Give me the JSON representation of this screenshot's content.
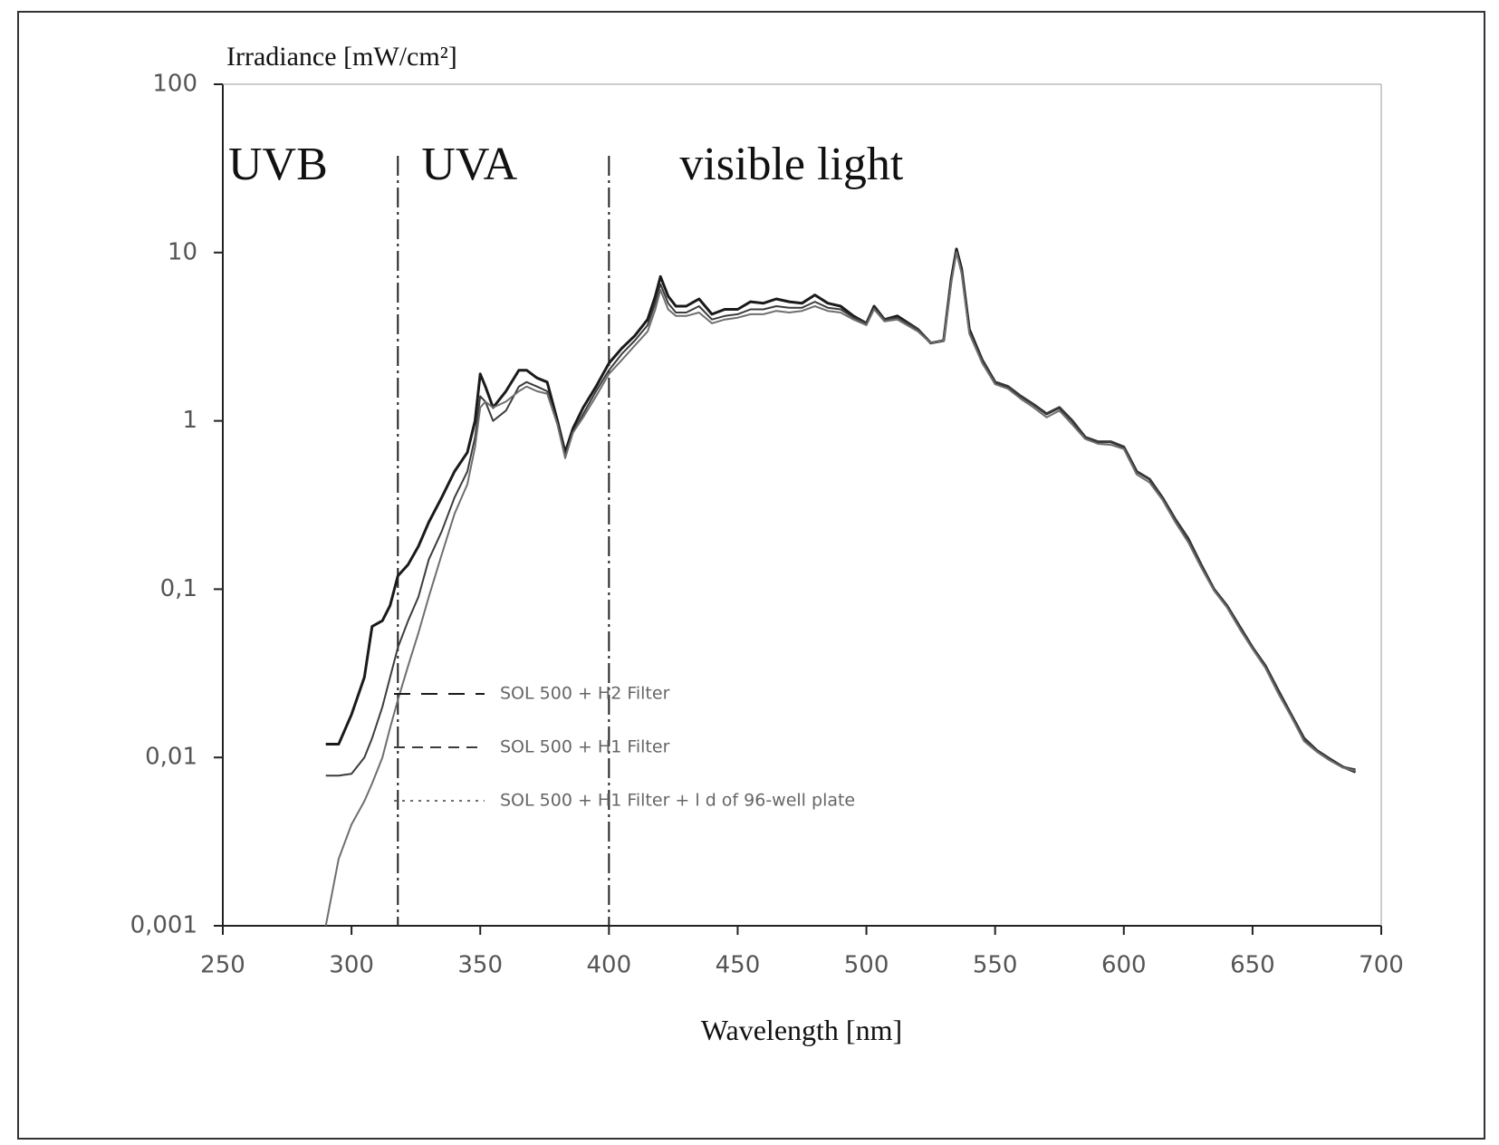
{
  "chart_data": {
    "type": "line",
    "y_label": "Irradiance [mW/cm²]",
    "x_label": "Wavelength [nm]",
    "log_y": true,
    "xlim": [
      250,
      700
    ],
    "xticks": [
      250,
      300,
      350,
      400,
      450,
      500,
      550,
      600,
      650,
      700
    ],
    "ylim": [
      0.001,
      100
    ],
    "yticks": [
      {
        "value": 0.001,
        "label": "0,001"
      },
      {
        "value": 0.01,
        "label": "0,01"
      },
      {
        "value": 0.1,
        "label": "0,1"
      },
      1,
      10,
      100
    ],
    "regions": [
      "UVB",
      "UVA",
      "visible light"
    ],
    "region_boundaries": [
      318,
      400
    ],
    "x": [
      290,
      295,
      300,
      305,
      308,
      312,
      315,
      318,
      322,
      326,
      330,
      335,
      340,
      345,
      348,
      350,
      352,
      355,
      360,
      365,
      368,
      372,
      376,
      380,
      383,
      386,
      390,
      395,
      400,
      405,
      410,
      415,
      418,
      420,
      423,
      426,
      430,
      435,
      440,
      445,
      450,
      455,
      460,
      465,
      470,
      475,
      480,
      485,
      490,
      495,
      500,
      503,
      507,
      512,
      520,
      525,
      530,
      533,
      535,
      537,
      540,
      545,
      550,
      555,
      560,
      565,
      570,
      575,
      580,
      585,
      590,
      595,
      600,
      605,
      610,
      615,
      620,
      625,
      630,
      635,
      640,
      645,
      650,
      655,
      660,
      665,
      670,
      675,
      680,
      685,
      690
    ],
    "series": [
      {
        "name": "SOL 500 + H2 Filter",
        "color": "#1a1a1a",
        "values": [
          0.012,
          0.012,
          0.018,
          0.03,
          0.06,
          0.065,
          0.08,
          0.12,
          0.14,
          0.18,
          0.25,
          0.35,
          0.5,
          0.65,
          1.0,
          1.9,
          1.6,
          1.2,
          1.5,
          2.0,
          2.0,
          1.8,
          1.7,
          1.0,
          0.65,
          0.9,
          1.2,
          1.6,
          2.2,
          2.7,
          3.2,
          4.0,
          5.5,
          7.2,
          5.5,
          4.8,
          4.8,
          5.3,
          4.3,
          4.6,
          4.6,
          5.1,
          5.0,
          5.3,
          5.1,
          5.0,
          5.6,
          5.0,
          4.8,
          4.2,
          3.8,
          4.8,
          4.0,
          4.2,
          3.5,
          2.9,
          3.0,
          7.0,
          10.5,
          8.0,
          3.5,
          2.3,
          1.7,
          1.6,
          1.4,
          1.25,
          1.1,
          1.2,
          1.0,
          0.8,
          0.75,
          0.75,
          0.7,
          0.5,
          0.45,
          0.35,
          0.26,
          0.2,
          0.14,
          0.1,
          0.08,
          0.06,
          0.045,
          0.035,
          0.025,
          0.018,
          0.013,
          0.011,
          0.0098,
          0.0088,
          0.0082
        ]
      },
      {
        "name": "SOL 500 + H1 Filter",
        "color": "#3c3c3c",
        "values": [
          0.0078,
          0.0078,
          0.008,
          0.01,
          0.013,
          0.02,
          0.03,
          0.045,
          0.065,
          0.09,
          0.15,
          0.22,
          0.35,
          0.5,
          0.8,
          1.4,
          1.3,
          1.0,
          1.15,
          1.6,
          1.7,
          1.6,
          1.5,
          0.95,
          0.62,
          0.85,
          1.1,
          1.5,
          2.0,
          2.5,
          3.0,
          3.7,
          5.0,
          6.5,
          5.0,
          4.4,
          4.4,
          4.8,
          4.0,
          4.2,
          4.3,
          4.6,
          4.6,
          4.8,
          4.7,
          4.7,
          5.1,
          4.7,
          4.6,
          4.1,
          3.8,
          4.7,
          4.0,
          4.1,
          3.5,
          2.9,
          3.0,
          6.8,
          10.2,
          7.8,
          3.4,
          2.3,
          1.7,
          1.6,
          1.4,
          1.25,
          1.1,
          1.2,
          1.0,
          0.8,
          0.75,
          0.75,
          0.7,
          0.5,
          0.45,
          0.35,
          0.26,
          0.2,
          0.14,
          0.1,
          0.08,
          0.06,
          0.045,
          0.035,
          0.025,
          0.018,
          0.013,
          0.011,
          0.0098,
          0.0088,
          0.0085
        ]
      },
      {
        "name": "SOL 500 + H1 Filter + l d of 96-well plate",
        "color": "#6e6e6e",
        "values": [
          0.001,
          0.0025,
          0.004,
          0.0055,
          0.007,
          0.01,
          0.015,
          0.022,
          0.035,
          0.055,
          0.09,
          0.16,
          0.28,
          0.42,
          0.7,
          1.2,
          1.3,
          1.2,
          1.3,
          1.5,
          1.6,
          1.5,
          1.45,
          0.95,
          0.6,
          0.85,
          1.05,
          1.4,
          1.9,
          2.3,
          2.8,
          3.4,
          4.6,
          6.0,
          4.6,
          4.2,
          4.2,
          4.4,
          3.8,
          4.0,
          4.1,
          4.3,
          4.3,
          4.5,
          4.4,
          4.5,
          4.8,
          4.5,
          4.4,
          4.0,
          3.7,
          4.6,
          3.9,
          4.0,
          3.4,
          2.9,
          3.0,
          6.6,
          10.0,
          7.5,
          3.3,
          2.2,
          1.65,
          1.55,
          1.35,
          1.2,
          1.05,
          1.15,
          0.95,
          0.78,
          0.73,
          0.72,
          0.68,
          0.48,
          0.43,
          0.34,
          0.25,
          0.19,
          0.135,
          0.098,
          0.078,
          0.058,
          0.044,
          0.034,
          0.024,
          0.0175,
          0.0125,
          0.0108,
          0.0096,
          0.0087,
          0.0083
        ]
      }
    ]
  }
}
